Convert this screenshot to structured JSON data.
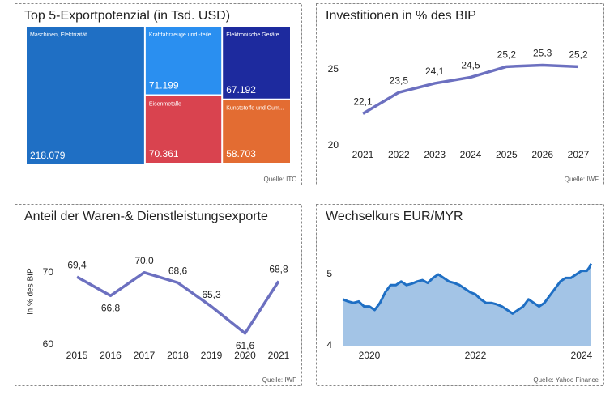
{
  "chart_data": [
    {
      "type": "treemap",
      "title": "Top 5-Exportpotenzial (in Tsd. USD)",
      "source": "Quelle: ITC",
      "categories": [
        "Maschinen, Elektrizität",
        "Kraftfahrzeuge und -teile",
        "Eisenmetalle",
        "Elektronische Geräte",
        "Kunststoffe und Gum..."
      ],
      "values": [
        218079,
        71199,
        70361,
        67192,
        58703
      ],
      "value_labels": [
        "218.079",
        "71.199",
        "70.361",
        "67.192",
        "58.703"
      ],
      "colors": [
        "#1f6fc4",
        "#2a8ff0",
        "#d9434f",
        "#1d2a9e",
        "#e36c32"
      ]
    },
    {
      "type": "line",
      "title": "Investitionen in % des BIP",
      "source": "Quelle: IWF",
      "categories": [
        "2021",
        "2022",
        "2023",
        "2024",
        "2025",
        "2026",
        "2027"
      ],
      "values": [
        22.1,
        23.5,
        24.1,
        24.5,
        25.2,
        25.3,
        25.2
      ],
      "value_labels": [
        "22,1",
        "23,5",
        "24,1",
        "24,5",
        "25,2",
        "25,3",
        "25,2"
      ],
      "color": "#6c70c0",
      "ylim": [
        19.5,
        26.5
      ],
      "yticks": [
        20,
        25
      ]
    },
    {
      "type": "line",
      "title": "Anteil der Waren-& Dienstleistungsexporte",
      "source": "Quelle: IWF",
      "ylabel": "in % des BIP",
      "categories": [
        "2015",
        "2016",
        "2017",
        "2018",
        "2019",
        "2020",
        "2021"
      ],
      "values": [
        69.4,
        66.8,
        70.0,
        68.6,
        65.3,
        61.6,
        68.8
      ],
      "value_labels": [
        "69,4",
        "66,8",
        "70,0",
        "68,6",
        "65,3",
        "61,6",
        "68,8"
      ],
      "color": "#6c70c0",
      "ylim": [
        59,
        74
      ],
      "yticks": [
        60,
        70
      ]
    },
    {
      "type": "area",
      "title": "Wechselkurs EUR/MYR",
      "source": "Quelle: Yahoo Finance",
      "x": [
        2019.5,
        2019.6,
        2019.7,
        2019.8,
        2019.9,
        2020.0,
        2020.1,
        2020.2,
        2020.3,
        2020.4,
        2020.5,
        2020.6,
        2020.7,
        2020.8,
        2020.9,
        2021.0,
        2021.1,
        2021.2,
        2021.3,
        2021.4,
        2021.5,
        2021.6,
        2021.7,
        2021.8,
        2021.9,
        2022.0,
        2022.1,
        2022.2,
        2022.3,
        2022.4,
        2022.5,
        2022.6,
        2022.7,
        2022.8,
        2022.9,
        2023.0,
        2023.1,
        2023.2,
        2023.3,
        2023.4,
        2023.5,
        2023.6,
        2023.7,
        2023.8,
        2023.9,
        2024.0,
        2024.1,
        2024.15,
        2024.18
      ],
      "values": [
        4.65,
        4.62,
        4.6,
        4.62,
        4.55,
        4.55,
        4.5,
        4.6,
        4.75,
        4.85,
        4.85,
        4.9,
        4.85,
        4.87,
        4.9,
        4.92,
        4.88,
        4.95,
        5.0,
        4.95,
        4.9,
        4.88,
        4.85,
        4.8,
        4.75,
        4.72,
        4.65,
        4.6,
        4.6,
        4.58,
        4.55,
        4.5,
        4.45,
        4.5,
        4.55,
        4.65,
        4.6,
        4.55,
        4.6,
        4.7,
        4.8,
        4.9,
        4.95,
        4.95,
        5.0,
        5.05,
        5.05,
        5.1,
        5.15
      ],
      "color": "#1f6fc4",
      "fill": "#a3c4e6",
      "xlim": [
        2019.45,
        2024.2
      ],
      "xticks": [
        2020,
        2022,
        2024
      ],
      "ylim": [
        4,
        5.45
      ],
      "yticks": [
        4,
        5
      ]
    }
  ]
}
